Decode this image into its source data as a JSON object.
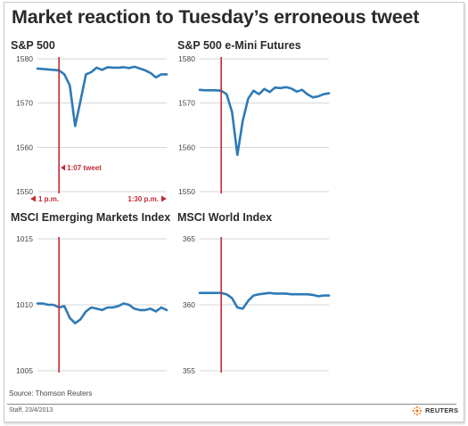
{
  "title": "Market reaction to Tuesday’s erroneous tweet",
  "colors": {
    "series": "#2d7ab7",
    "event": "#c42a36",
    "grid": "#d4d4d4"
  },
  "footer": {
    "source": "Source: Thomson Reuters",
    "credit": "Staff, 23/4/2013",
    "brand": "REUTERS",
    "brand_icon": "reuters-dot-logo"
  },
  "chart_data": [
    {
      "type": "line",
      "title": "S&P 500",
      "ylim": [
        1550,
        1580
      ],
      "yticks": [
        1550,
        1560,
        1570,
        1580
      ],
      "grid": true,
      "event": {
        "label": "1:07 tweet",
        "index": 4
      },
      "x_range_labels": {
        "start": "1 p.m.",
        "end": "1:30 p.m."
      },
      "series": [
        {
          "values": [
            1577.8,
            1577.7,
            1577.6,
            1577.5,
            1577.4,
            1576.5,
            1574.0,
            1564.8,
            1570.5,
            1576.5,
            1577.0,
            1578.0,
            1577.5,
            1578.1,
            1578.0,
            1578.0,
            1578.1,
            1577.9,
            1578.2,
            1577.8,
            1577.4,
            1576.8,
            1575.8,
            1576.5,
            1576.5
          ]
        }
      ]
    },
    {
      "type": "line",
      "title": "S&P 500 e-Mini Futures",
      "ylim": [
        1550,
        1580
      ],
      "yticks": [
        1550,
        1560,
        1570,
        1580
      ],
      "grid": true,
      "event": {
        "index": 4
      },
      "series": [
        {
          "values": [
            1573.0,
            1572.9,
            1572.9,
            1572.9,
            1572.8,
            1572.0,
            1568.0,
            1558.3,
            1566.0,
            1571.0,
            1572.8,
            1572.0,
            1573.2,
            1572.5,
            1573.5,
            1573.4,
            1573.6,
            1573.3,
            1572.6,
            1573.0,
            1572.0,
            1571.3,
            1571.5,
            1572.0,
            1572.2
          ]
        }
      ]
    },
    {
      "type": "line",
      "title": "MSCI Emerging Markets Index",
      "ylim": [
        1005,
        1015
      ],
      "yticks": [
        1005,
        1010,
        1015
      ],
      "grid": true,
      "event": {
        "index": 4
      },
      "series": [
        {
          "values": [
            1010.1,
            1010.1,
            1010.0,
            1010.0,
            1009.8,
            1009.9,
            1009.0,
            1008.6,
            1008.9,
            1009.5,
            1009.8,
            1009.7,
            1009.6,
            1009.8,
            1009.8,
            1009.9,
            1010.1,
            1010.0,
            1009.7,
            1009.6,
            1009.6,
            1009.7,
            1009.5,
            1009.8,
            1009.6
          ]
        }
      ]
    },
    {
      "type": "line",
      "title": "MSCI World Index",
      "ylim": [
        355,
        365
      ],
      "yticks": [
        355,
        360,
        365
      ],
      "grid": true,
      "event": {
        "index": 4
      },
      "series": [
        {
          "values": [
            360.9,
            360.9,
            360.9,
            360.9,
            360.9,
            360.8,
            360.5,
            359.8,
            359.7,
            360.3,
            360.7,
            360.8,
            360.85,
            360.9,
            360.85,
            360.85,
            360.85,
            360.8,
            360.8,
            360.8,
            360.8,
            360.75,
            360.65,
            360.7,
            360.7
          ]
        }
      ]
    }
  ]
}
